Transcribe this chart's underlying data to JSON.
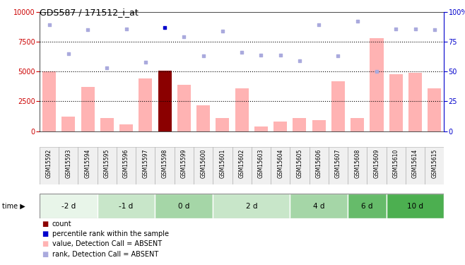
{
  "title": "GDS587 / 171512_i_at",
  "samples": [
    "GSM15592",
    "GSM15593",
    "GSM15594",
    "GSM15595",
    "GSM15596",
    "GSM15597",
    "GSM15598",
    "GSM15599",
    "GSM15600",
    "GSM15601",
    "GSM15602",
    "GSM15603",
    "GSM15604",
    "GSM15605",
    "GSM15606",
    "GSM15607",
    "GSM15608",
    "GSM15609",
    "GSM15610",
    "GSM15614",
    "GSM15615"
  ],
  "bar_values": [
    5000,
    1200,
    3700,
    1100,
    600,
    4400,
    5100,
    3900,
    2200,
    1100,
    3600,
    400,
    800,
    1100,
    900,
    4200,
    1100,
    7800,
    4800,
    4900,
    3600
  ],
  "bar_colors": [
    "#FFB3B3",
    "#FFB3B3",
    "#FFB3B3",
    "#FFB3B3",
    "#FFB3B3",
    "#FFB3B3",
    "#8B0000",
    "#FFB3B3",
    "#FFB3B3",
    "#FFB3B3",
    "#FFB3B3",
    "#FFB3B3",
    "#FFB3B3",
    "#FFB3B3",
    "#FFB3B3",
    "#FFB3B3",
    "#FFB3B3",
    "#FFB3B3",
    "#FFB3B3",
    "#FFB3B3",
    "#FFB3B3"
  ],
  "scatter_values": [
    8900,
    6500,
    8500,
    5300,
    8600,
    5800,
    8700,
    7900,
    6300,
    8400,
    6600,
    6400,
    6400,
    5900,
    8900,
    6300,
    9200,
    5000,
    8600,
    8600,
    8500
  ],
  "scatter_colors": [
    "#AAAADD",
    "#AAAADD",
    "#AAAADD",
    "#AAAADD",
    "#AAAADD",
    "#AAAADD",
    "#0000CC",
    "#AAAADD",
    "#AAAADD",
    "#AAAADD",
    "#AAAADD",
    "#AAAADD",
    "#AAAADD",
    "#AAAADD",
    "#AAAADD",
    "#AAAADD",
    "#AAAADD",
    "#AAAADD",
    "#AAAADD",
    "#AAAADD",
    "#AAAADD"
  ],
  "time_groups": [
    {
      "label": "-2 d",
      "start": 0,
      "end": 3,
      "color": "#E8F5E9"
    },
    {
      "label": "-1 d",
      "start": 3,
      "end": 6,
      "color": "#C8E6C9"
    },
    {
      "label": "0 d",
      "start": 6,
      "end": 9,
      "color": "#A5D6A7"
    },
    {
      "label": "2 d",
      "start": 9,
      "end": 13,
      "color": "#C8E6C9"
    },
    {
      "label": "4 d",
      "start": 13,
      "end": 16,
      "color": "#A5D6A7"
    },
    {
      "label": "6 d",
      "start": 16,
      "end": 18,
      "color": "#66BB6A"
    },
    {
      "label": "10 d",
      "start": 18,
      "end": 21,
      "color": "#4CAF50"
    }
  ],
  "ylim_left": [
    0,
    10000
  ],
  "ylim_right": [
    0,
    100
  ],
  "yticks_left": [
    0,
    2500,
    5000,
    7500,
    10000
  ],
  "yticks_right": [
    0,
    25,
    50,
    75,
    100
  ],
  "ytick_labels_right": [
    "0",
    "25",
    "50",
    "75",
    "100%"
  ],
  "legend_items": [
    {
      "color": "#8B0000",
      "label": "count"
    },
    {
      "color": "#0000CC",
      "label": "percentile rank within the sample"
    },
    {
      "color": "#FFB3B3",
      "label": "value, Detection Call = ABSENT"
    },
    {
      "color": "#AAAADD",
      "label": "rank, Detection Call = ABSENT"
    }
  ],
  "bg_color": "#FFFFFF",
  "left_axis_color": "#CC0000",
  "right_axis_color": "#0000CC"
}
